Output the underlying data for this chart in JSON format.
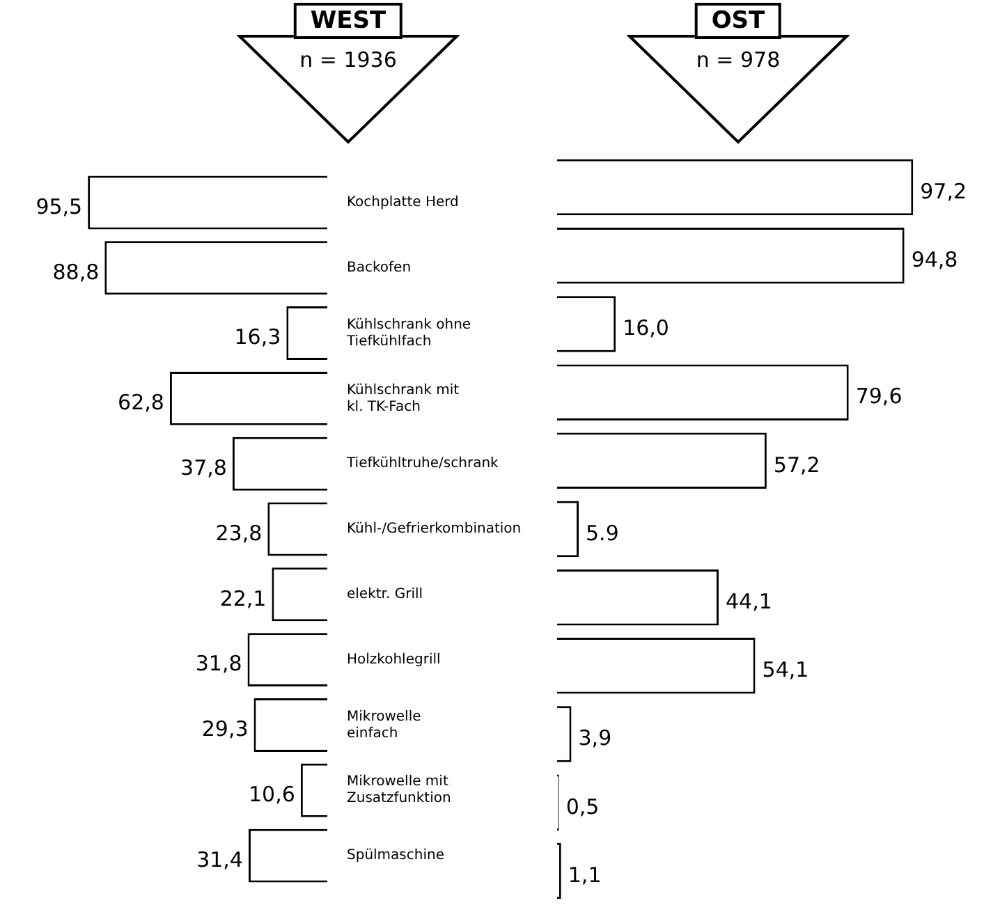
{
  "chart_data": [
    {
      "type": "bar",
      "title": "WEST",
      "subtitle": "n = 1936",
      "orientation": "horizontal",
      "tick_labels": "y",
      "categories": [
        "Kochplatte Herd",
        "Backofen",
        "Kühlschrank ohne Tiefkühlfach",
        "Kühlschrank mit kl. TK-Fach",
        "Tiefkühltruhe/schrank",
        "Kühl-/Gefrierkombination",
        "elektr. Grill",
        "Holzkohlegrill",
        "Mikrowelle einfach",
        "Mikrowelle mit Zusatzfunktion",
        "Spülmaschine"
      ],
      "values": [
        95.5,
        88.8,
        16.3,
        62.8,
        37.8,
        23.8,
        22.1,
        31.8,
        29.3,
        10.6,
        31.4
      ],
      "value_labels": [
        "95,5",
        "88,8",
        "16,3",
        "62,8",
        "37,8",
        "23,8",
        "22,1",
        "31,8",
        "29,3",
        "10,6",
        "31,4"
      ],
      "color": "#ffffff",
      "legend": false
    },
    {
      "type": "bar",
      "title": "OST",
      "subtitle": "n = 978",
      "orientation": "horizontal",
      "tick_labels": false,
      "categories": [
        null,
        null,
        null,
        null,
        null,
        null,
        null,
        null,
        null,
        null,
        null
      ],
      "values": [
        97.2,
        94.8,
        16.0,
        79.6,
        57.2,
        5.9,
        44.1,
        54.1,
        3.9,
        0.5,
        1.1
      ],
      "value_labels": [
        "97,2",
        "94,8",
        "16,0",
        "79,6",
        "57,2",
        "5.9",
        "44,1",
        "54,1",
        "3,9",
        "0,5",
        "1,1"
      ],
      "color": "#ffffff",
      "legend": false
    }
  ]
}
